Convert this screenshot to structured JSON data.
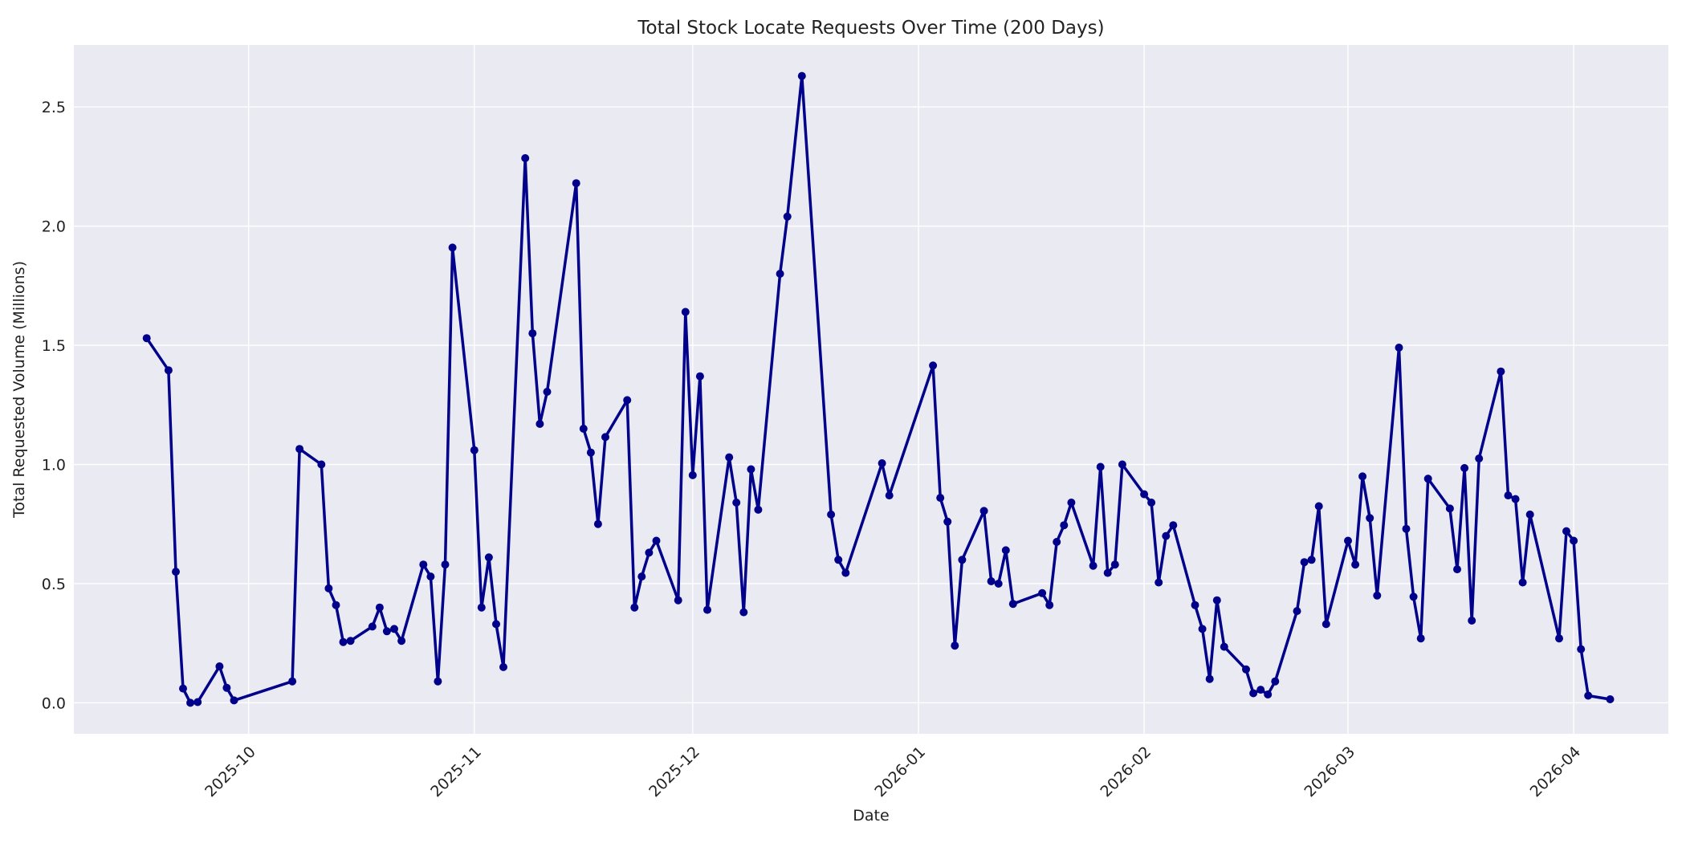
{
  "chart_data": {
    "type": "line",
    "title": "Total Stock Locate Requests Over Time (200 Days)",
    "xlabel": "Date",
    "ylabel": "Total Requested Volume (Millions)",
    "x_range": [
      "2025-09-07",
      "2026-04-14"
    ],
    "ylim": [
      -0.13,
      2.76
    ],
    "grid": true,
    "legend": "none",
    "x_tick_labels": [
      "2025-10",
      "2025-11",
      "2025-12",
      "2026-01",
      "2026-02",
      "2026-03",
      "2026-04"
    ],
    "y_tick_labels": [
      "0.0",
      "0.5",
      "1.0",
      "1.5",
      "2.0",
      "2.5"
    ],
    "colors": {
      "line": "#00008b",
      "plot_background": "#eaeaf2",
      "grid": "#ffffff"
    },
    "series": [
      {
        "marker": "circle",
        "points": [
          [
            "2025-09-17",
            1.53
          ],
          [
            "2025-09-20",
            1.395
          ],
          [
            "2025-09-21",
            0.55
          ],
          [
            "2025-09-22",
            0.06
          ],
          [
            "2025-09-23",
            0.0
          ],
          [
            "2025-09-24",
            0.003
          ],
          [
            "2025-09-27",
            0.153
          ],
          [
            "2025-09-28",
            0.063
          ],
          [
            "2025-09-29",
            0.01
          ],
          [
            "2025-10-07",
            0.09
          ],
          [
            "2025-10-08",
            1.065
          ],
          [
            "2025-10-11",
            1.0
          ],
          [
            "2025-10-12",
            0.48
          ],
          [
            "2025-10-13",
            0.41
          ],
          [
            "2025-10-14",
            0.255
          ],
          [
            "2025-10-15",
            0.26
          ],
          [
            "2025-10-18",
            0.32
          ],
          [
            "2025-10-19",
            0.4
          ],
          [
            "2025-10-20",
            0.3
          ],
          [
            "2025-10-21",
            0.31
          ],
          [
            "2025-10-22",
            0.26
          ],
          [
            "2025-10-25",
            0.58
          ],
          [
            "2025-10-26",
            0.53
          ],
          [
            "2025-10-27",
            0.09
          ],
          [
            "2025-10-28",
            0.58
          ],
          [
            "2025-10-29",
            1.91
          ],
          [
            "2025-11-01",
            1.06
          ],
          [
            "2025-11-02",
            0.4
          ],
          [
            "2025-11-03",
            0.61
          ],
          [
            "2025-11-04",
            0.33
          ],
          [
            "2025-11-05",
            0.15
          ],
          [
            "2025-11-08",
            2.285
          ],
          [
            "2025-11-09",
            1.55
          ],
          [
            "2025-11-10",
            1.17
          ],
          [
            "2025-11-11",
            1.305
          ],
          [
            "2025-11-15",
            2.18
          ],
          [
            "2025-11-16",
            1.15
          ],
          [
            "2025-11-17",
            1.05
          ],
          [
            "2025-11-18",
            0.75
          ],
          [
            "2025-11-19",
            1.115
          ],
          [
            "2025-11-22",
            1.27
          ],
          [
            "2025-11-23",
            0.4
          ],
          [
            "2025-11-24",
            0.53
          ],
          [
            "2025-11-25",
            0.63
          ],
          [
            "2025-11-26",
            0.68
          ],
          [
            "2025-11-29",
            0.43
          ],
          [
            "2025-11-30",
            1.64
          ],
          [
            "2025-12-01",
            0.955
          ],
          [
            "2025-12-02",
            1.37
          ],
          [
            "2025-12-03",
            0.39
          ],
          [
            "2025-12-06",
            1.03
          ],
          [
            "2025-12-07",
            0.84
          ],
          [
            "2025-12-08",
            0.38
          ],
          [
            "2025-12-09",
            0.98
          ],
          [
            "2025-12-10",
            0.81
          ],
          [
            "2025-12-13",
            1.8
          ],
          [
            "2025-12-14",
            2.04
          ],
          [
            "2025-12-16",
            2.63
          ],
          [
            "2025-12-20",
            0.79
          ],
          [
            "2025-12-21",
            0.6
          ],
          [
            "2025-12-22",
            0.545
          ],
          [
            "2025-12-27",
            1.005
          ],
          [
            "2025-12-28",
            0.87
          ],
          [
            "2026-01-03",
            1.415
          ],
          [
            "2026-01-04",
            0.86
          ],
          [
            "2026-01-05",
            0.76
          ],
          [
            "2026-01-06",
            0.24
          ],
          [
            "2026-01-07",
            0.6
          ],
          [
            "2026-01-10",
            0.805
          ],
          [
            "2026-01-11",
            0.51
          ],
          [
            "2026-01-12",
            0.5
          ],
          [
            "2026-01-13",
            0.64
          ],
          [
            "2026-01-14",
            0.415
          ],
          [
            "2026-01-18",
            0.46
          ],
          [
            "2026-01-19",
            0.41
          ],
          [
            "2026-01-20",
            0.675
          ],
          [
            "2026-01-21",
            0.745
          ],
          [
            "2026-01-22",
            0.84
          ],
          [
            "2026-01-25",
            0.575
          ],
          [
            "2026-01-26",
            0.99
          ],
          [
            "2026-01-27",
            0.545
          ],
          [
            "2026-01-28",
            0.58
          ],
          [
            "2026-01-29",
            1.0
          ],
          [
            "2026-02-01",
            0.875
          ],
          [
            "2026-02-02",
            0.84
          ],
          [
            "2026-02-03",
            0.505
          ],
          [
            "2026-02-04",
            0.7
          ],
          [
            "2026-02-05",
            0.745
          ],
          [
            "2026-02-08",
            0.41
          ],
          [
            "2026-02-09",
            0.31
          ],
          [
            "2026-02-10",
            0.1
          ],
          [
            "2026-02-11",
            0.43
          ],
          [
            "2026-02-12",
            0.235
          ],
          [
            "2026-02-15",
            0.14
          ],
          [
            "2026-02-16",
            0.04
          ],
          [
            "2026-02-17",
            0.055
          ],
          [
            "2026-02-18",
            0.035
          ],
          [
            "2026-02-19",
            0.09
          ],
          [
            "2026-02-22",
            0.385
          ],
          [
            "2026-02-23",
            0.59
          ],
          [
            "2026-02-24",
            0.6
          ],
          [
            "2026-02-25",
            0.825
          ],
          [
            "2026-02-26",
            0.33
          ],
          [
            "2026-03-01",
            0.68
          ],
          [
            "2026-03-02",
            0.58
          ],
          [
            "2026-03-03",
            0.95
          ],
          [
            "2026-03-04",
            0.775
          ],
          [
            "2026-03-05",
            0.45
          ],
          [
            "2026-03-08",
            1.49
          ],
          [
            "2026-03-09",
            0.73
          ],
          [
            "2026-03-10",
            0.445
          ],
          [
            "2026-03-11",
            0.27
          ],
          [
            "2026-03-12",
            0.94
          ],
          [
            "2026-03-15",
            0.815
          ],
          [
            "2026-03-16",
            0.56
          ],
          [
            "2026-03-17",
            0.985
          ],
          [
            "2026-03-18",
            0.345
          ],
          [
            "2026-03-19",
            1.025
          ],
          [
            "2026-03-22",
            1.39
          ],
          [
            "2026-03-23",
            0.87
          ],
          [
            "2026-03-24",
            0.855
          ],
          [
            "2026-03-25",
            0.505
          ],
          [
            "2026-03-26",
            0.79
          ],
          [
            "2026-03-30",
            0.27
          ],
          [
            "2026-03-31",
            0.72
          ],
          [
            "2026-04-01",
            0.68
          ],
          [
            "2026-04-02",
            0.225
          ],
          [
            "2026-04-03",
            0.03
          ],
          [
            "2026-04-06",
            0.015
          ]
        ]
      }
    ]
  }
}
